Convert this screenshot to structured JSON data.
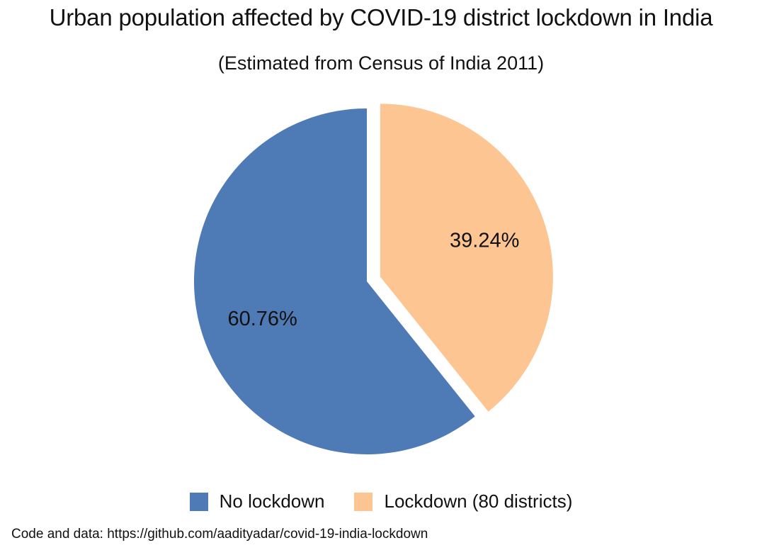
{
  "chart_data": {
    "type": "pie",
    "title": "Urban population affected by COVID-19 district lockdown in India",
    "subtitle": "(Estimated from Census of India 2011)",
    "categories": [
      "No lockdown",
      "Lockdown (80 districts)"
    ],
    "values": [
      60.76,
      39.24
    ],
    "labels": [
      "60.76%",
      "39.24%"
    ],
    "colors": [
      "#4e7ab5",
      "#fcc591"
    ],
    "exploded": [
      false,
      true
    ],
    "legend_position": "bottom"
  },
  "legend": {
    "items": [
      {
        "label": "No lockdown",
        "color": "#4e7ab5"
      },
      {
        "label": "Lockdown (80 districts)",
        "color": "#fcc591"
      }
    ]
  },
  "footer": {
    "text": "Code and data: https://github.com/aadityadar/covid-19-india-lockdown"
  }
}
